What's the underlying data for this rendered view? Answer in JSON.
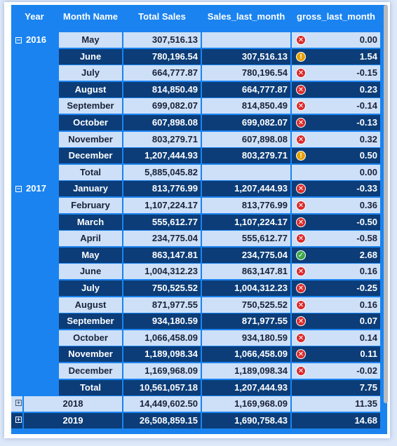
{
  "columns": [
    "Year",
    "Month Name",
    "Total Sales",
    "Sales_last_month",
    "gross_last_month"
  ],
  "colors": {
    "header_bg": "#1a83f0",
    "row_light": "#cde0f8",
    "row_dark": "#0c3d78",
    "bad": "#d92c2c",
    "warn": "#e6a000",
    "good": "#3ea64a"
  },
  "years": [
    {
      "year": "2016",
      "rows": [
        {
          "month": "May",
          "total": "307,516.13",
          "last": "",
          "icon": "bad",
          "gross": "0.00"
        },
        {
          "month": "June",
          "total": "780,196.54",
          "last": "307,516.13",
          "icon": "warn",
          "gross": "1.54"
        },
        {
          "month": "July",
          "total": "664,777.87",
          "last": "780,196.54",
          "icon": "bad",
          "gross": "-0.15"
        },
        {
          "month": "August",
          "total": "814,850.49",
          "last": "664,777.87",
          "icon": "bad",
          "gross": "0.23"
        },
        {
          "month": "September",
          "total": "699,082.07",
          "last": "814,850.49",
          "icon": "bad",
          "gross": "-0.14"
        },
        {
          "month": "October",
          "total": "607,898.08",
          "last": "699,082.07",
          "icon": "bad",
          "gross": "-0.13"
        },
        {
          "month": "November",
          "total": "803,279.71",
          "last": "607,898.08",
          "icon": "bad",
          "gross": "0.32"
        },
        {
          "month": "December",
          "total": "1,207,444.93",
          "last": "803,279.71",
          "icon": "warn",
          "gross": "0.50"
        },
        {
          "month": "Total",
          "total": "5,885,045.82",
          "last": "",
          "icon": "",
          "gross": "0.00"
        }
      ]
    },
    {
      "year": "2017",
      "rows": [
        {
          "month": "January",
          "total": "813,776.99",
          "last": "1,207,444.93",
          "icon": "bad",
          "gross": "-0.33"
        },
        {
          "month": "February",
          "total": "1,107,224.17",
          "last": "813,776.99",
          "icon": "bad",
          "gross": "0.36"
        },
        {
          "month": "March",
          "total": "555,612.77",
          "last": "1,107,224.17",
          "icon": "bad",
          "gross": "-0.50"
        },
        {
          "month": "April",
          "total": "234,775.04",
          "last": "555,612.77",
          "icon": "bad",
          "gross": "-0.58"
        },
        {
          "month": "May",
          "total": "863,147.81",
          "last": "234,775.04",
          "icon": "good",
          "gross": "2.68"
        },
        {
          "month": "June",
          "total": "1,004,312.23",
          "last": "863,147.81",
          "icon": "bad",
          "gross": "0.16"
        },
        {
          "month": "July",
          "total": "750,525.52",
          "last": "1,004,312.23",
          "icon": "bad",
          "gross": "-0.25"
        },
        {
          "month": "August",
          "total": "871,977.55",
          "last": "750,525.52",
          "icon": "bad",
          "gross": "0.16"
        },
        {
          "month": "September",
          "total": "934,180.59",
          "last": "871,977.55",
          "icon": "bad",
          "gross": "0.07"
        },
        {
          "month": "October",
          "total": "1,066,458.09",
          "last": "934,180.59",
          "icon": "bad",
          "gross": "0.14"
        },
        {
          "month": "November",
          "total": "1,189,098.34",
          "last": "1,066,458.09",
          "icon": "bad",
          "gross": "0.11"
        },
        {
          "month": "December",
          "total": "1,169,968.09",
          "last": "1,189,098.34",
          "icon": "bad",
          "gross": "-0.02"
        },
        {
          "month": "Total",
          "total": "10,561,057.18",
          "last": "1,207,444.93",
          "icon": "",
          "gross": "7.75"
        }
      ]
    }
  ],
  "collapsed_years": [
    {
      "year": "2018",
      "total": "14,449,602.50",
      "last": "1,169,968.09",
      "gross": "11.35"
    },
    {
      "year": "2019",
      "total": "26,508,859.15",
      "last": "1,690,758.43",
      "gross": "14.68"
    }
  ]
}
